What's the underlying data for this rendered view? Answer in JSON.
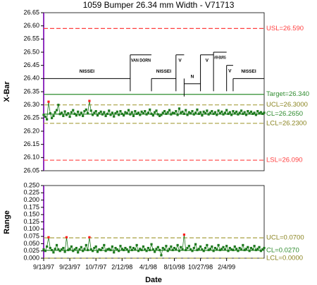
{
  "chart_data": [
    {
      "type": "line",
      "title": "1059 Bumper 26.34 mm Width - V71713",
      "y_label": "X-Bar",
      "ylim": [
        26.05,
        26.65
      ],
      "yticks": [
        {
          "value": 26.05,
          "label": "26.05"
        },
        {
          "value": 26.1,
          "label": "26.10"
        },
        {
          "value": 26.15,
          "label": "26.15"
        },
        {
          "value": 26.2,
          "label": "26.20"
        },
        {
          "value": 26.25,
          "label": "26.25"
        },
        {
          "value": 26.3,
          "label": "26.30"
        },
        {
          "value": 26.35,
          "label": "26.35"
        },
        {
          "value": 26.4,
          "label": "26.40"
        },
        {
          "value": 26.45,
          "label": "26.45"
        },
        {
          "value": 26.5,
          "label": "26.50"
        },
        {
          "value": 26.55,
          "label": "26.55"
        },
        {
          "value": 26.6,
          "label": "26.60"
        },
        {
          "value": 26.65,
          "label": "26.65"
        }
      ],
      "color": "#1f7a1f",
      "outlier_color": "#ff2020",
      "limits": [
        {
          "value": 26.59,
          "label": "USL=26.590",
          "color": "#ff4040",
          "dashed": true
        },
        {
          "value": 26.34,
          "label": "Target=26.340",
          "color": "#2e8b2e",
          "dashed": false
        },
        {
          "value": 26.3,
          "label": "UCL=26.3000",
          "color": "#a8a040",
          "dashed": true,
          "control": true
        },
        {
          "value": 26.265,
          "label": "CL=26.2650",
          "color": "#2e8b2e",
          "dashed": false
        },
        {
          "value": 26.23,
          "label": "LCL=26.2300",
          "color": "#a8a040",
          "dashed": true
        },
        {
          "value": 26.09,
          "label": "LSL=26.090",
          "color": "#ff4040",
          "dashed": true
        }
      ],
      "segments": [
        {
          "label": "NISSEI",
          "start": 0,
          "end": 53,
          "level": 26.4
        },
        {
          "label": "VAN DORN",
          "start": 53,
          "end": 66,
          "level": 26.49
        },
        {
          "label": "NISSEI",
          "start": 66,
          "end": 81,
          "level": 26.4
        },
        {
          "label": "V",
          "start": 81,
          "end": 86,
          "level": 26.49
        },
        {
          "label": "N",
          "start": 86,
          "end": 96,
          "level": 26.38
        },
        {
          "label": "V",
          "start": 96,
          "end": 104,
          "level": 26.49
        },
        {
          "label": "AR-BURG",
          "start": 104,
          "end": 112,
          "level": 26.5
        },
        {
          "label": "V",
          "start": 112,
          "end": 116,
          "level": 26.45
        },
        {
          "label": "NISSEI",
          "start": 116,
          "end": 135,
          "level": 26.4
        }
      ],
      "values": [
        26.262,
        26.255,
        26.245,
        26.312,
        26.268,
        26.25,
        26.258,
        26.272,
        26.28,
        26.3,
        26.265,
        26.27,
        26.258,
        26.275,
        26.262,
        26.268,
        26.255,
        26.272,
        26.28,
        26.266,
        26.26,
        26.274,
        26.262,
        26.27,
        26.258,
        26.276,
        26.282,
        26.268,
        26.315,
        26.278,
        26.262,
        26.27,
        26.276,
        26.26,
        26.268,
        26.274,
        26.264,
        26.272,
        26.258,
        26.266,
        26.278,
        26.262,
        26.27,
        26.256,
        26.268,
        26.274,
        26.262,
        26.276,
        26.266,
        26.26,
        26.272,
        26.268,
        26.28,
        26.264,
        26.272,
        26.258,
        26.276,
        26.266,
        26.27,
        26.262,
        26.274,
        26.268,
        26.276,
        26.264,
        26.27,
        26.282,
        26.266,
        26.26,
        26.272,
        26.278,
        26.264,
        26.258,
        26.262,
        26.27,
        26.276,
        26.266,
        26.272,
        26.28,
        26.264,
        26.27,
        26.268,
        26.276,
        26.262,
        26.286,
        26.27,
        26.274,
        26.266,
        26.28,
        26.262,
        26.272,
        26.268,
        26.276,
        26.264,
        26.27,
        26.282,
        26.266,
        26.272,
        26.26,
        26.274,
        26.268,
        26.278,
        26.264,
        26.27,
        26.276,
        26.266,
        26.272,
        26.262,
        26.278,
        26.268,
        26.274,
        26.264,
        26.27,
        26.28,
        26.266,
        26.272,
        26.262,
        26.276,
        26.268,
        26.274,
        26.264,
        26.27,
        26.278,
        26.266,
        26.272,
        26.262,
        26.276,
        26.268,
        26.274,
        26.266,
        26.27,
        26.262,
        26.276,
        26.268,
        26.272,
        26.266,
        26.27
      ]
    },
    {
      "type": "line",
      "y_label": "Range",
      "x_label": "Date",
      "ylim": [
        0,
        0.25
      ],
      "yticks": [
        {
          "value": 0,
          "label": "0.000"
        },
        {
          "value": 0.025,
          "label": "0.025"
        },
        {
          "value": 0.05,
          "label": "0.050"
        },
        {
          "value": 0.075,
          "label": "0.075"
        },
        {
          "value": 0.1,
          "label": "0.100"
        },
        {
          "value": 0.125,
          "label": "0.125"
        },
        {
          "value": 0.15,
          "label": "0.150"
        },
        {
          "value": 0.175,
          "label": "0.175"
        },
        {
          "value": 0.2,
          "label": "0.200"
        },
        {
          "value": 0.225,
          "label": "0.225"
        },
        {
          "value": 0.25,
          "label": "0.250"
        }
      ],
      "color": "#1f7a1f",
      "outlier_color": "#ff2020",
      "limits": [
        {
          "value": 0.07,
          "label": "UCL=0.0700",
          "color": "#a8a040",
          "dashed": true,
          "control": true
        },
        {
          "value": 0.027,
          "label": "CL=0.0270",
          "color": "#2e8b2e",
          "dashed": false
        },
        {
          "value": 0,
          "label": "LCL=0.0000",
          "color": "#a8a040",
          "dashed": true
        }
      ],
      "categories": [
        "9/13/97",
        null,
        null,
        null,
        null,
        null,
        null,
        null,
        null,
        null,
        null,
        null,
        null,
        null,
        null,
        null,
        "9/23/97",
        null,
        null,
        null,
        null,
        null,
        null,
        null,
        null,
        null,
        null,
        null,
        null,
        null,
        null,
        null,
        "10/7/97",
        null,
        null,
        null,
        null,
        null,
        null,
        null,
        null,
        null,
        null,
        null,
        null,
        null,
        null,
        null,
        "2/12/98",
        null,
        null,
        null,
        null,
        null,
        null,
        null,
        null,
        null,
        null,
        null,
        null,
        null,
        null,
        null,
        "4/1/98",
        null,
        null,
        null,
        null,
        null,
        null,
        null,
        null,
        null,
        null,
        null,
        null,
        null,
        null,
        null,
        "8/10/98",
        null,
        null,
        null,
        null,
        null,
        null,
        null,
        null,
        null,
        null,
        null,
        null,
        null,
        null,
        null,
        "10/27/98",
        null,
        null,
        null,
        null,
        null,
        null,
        null,
        null,
        null,
        null,
        null,
        null,
        null,
        null,
        null,
        "2/4/99",
        null,
        null,
        null,
        null,
        null,
        null,
        null,
        null,
        null,
        null,
        null,
        null,
        null,
        null,
        null,
        null,
        null,
        null,
        null,
        null,
        null,
        null,
        null
      ],
      "values": [
        0.03,
        0.025,
        0.04,
        0.072,
        0.035,
        0.028,
        0.02,
        0.032,
        0.045,
        0.03,
        0.025,
        0.03,
        0.035,
        0.022,
        0.072,
        0.028,
        0.032,
        0.04,
        0.025,
        0.03,
        0.035,
        0.02,
        0.03,
        0.038,
        0.025,
        0.032,
        0.045,
        0.028,
        0.072,
        0.03,
        0.025,
        0.035,
        0.04,
        0.022,
        0.03,
        0.028,
        0.035,
        0.045,
        0.025,
        0.03,
        0.032,
        0.028,
        0.04,
        0.02,
        0.035,
        0.03,
        0.025,
        0.042,
        0.032,
        0.028,
        0.035,
        0.03,
        0.022,
        0.038,
        0.028,
        0.035,
        0.03,
        0.045,
        0.025,
        0.032,
        0.028,
        0.04,
        0.03,
        0.025,
        0.035,
        0.028,
        0.048,
        0.03,
        0.022,
        0.032,
        0.038,
        0.028,
        0.01,
        0.035,
        0.03,
        0.042,
        0.025,
        0.032,
        0.04,
        0.028,
        0.035,
        0.03,
        0.045,
        0.025,
        0.038,
        0.03,
        0.081,
        0.028,
        0.035,
        0.042,
        0.03,
        0.025,
        0.035,
        0.048,
        0.028,
        0.032,
        0.04,
        0.03,
        0.025,
        0.035,
        0.045,
        0.028,
        0.032,
        0.04,
        0.025,
        0.035,
        0.03,
        0.045,
        0.028,
        0.032,
        0.038,
        0.03,
        0.042,
        0.025,
        0.035,
        0.03,
        0.028,
        0.04,
        0.032,
        0.025,
        0.035,
        0.03,
        0.045,
        0.028,
        0.032,
        0.038,
        0.025,
        0.035,
        0.03,
        0.042,
        0.028,
        0.032,
        0.038,
        0.025,
        0.03,
        0.035
      ]
    }
  ]
}
